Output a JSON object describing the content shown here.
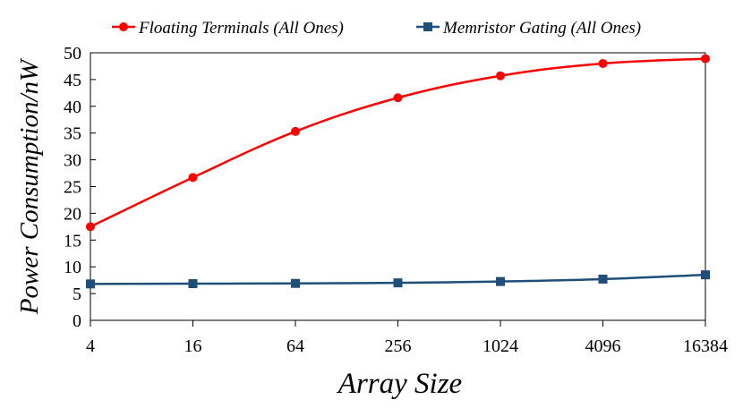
{
  "chart_data": {
    "type": "line",
    "categories": [
      "4",
      "16",
      "64",
      "256",
      "1024",
      "4096",
      "16384"
    ],
    "series": [
      {
        "name": "Floating Terminals (All Ones)",
        "color": "#ff0000",
        "marker": "circle",
        "values": [
          17.5,
          26.7,
          35.3,
          41.6,
          45.7,
          48.0,
          48.9
        ]
      },
      {
        "name": "Memristor Gating (All Ones)",
        "color": "#1f4e79",
        "marker": "square",
        "values": [
          6.8,
          6.85,
          6.9,
          7.0,
          7.25,
          7.7,
          8.5
        ]
      }
    ],
    "xlabel": "Array Size",
    "ylabel": "Power Consumption/nW",
    "ylim": [
      0,
      50
    ],
    "yticks": [
      "0",
      "5",
      "10",
      "15",
      "20",
      "25",
      "30",
      "35",
      "40",
      "45",
      "50"
    ],
    "grid": false,
    "legend_position": "top"
  }
}
